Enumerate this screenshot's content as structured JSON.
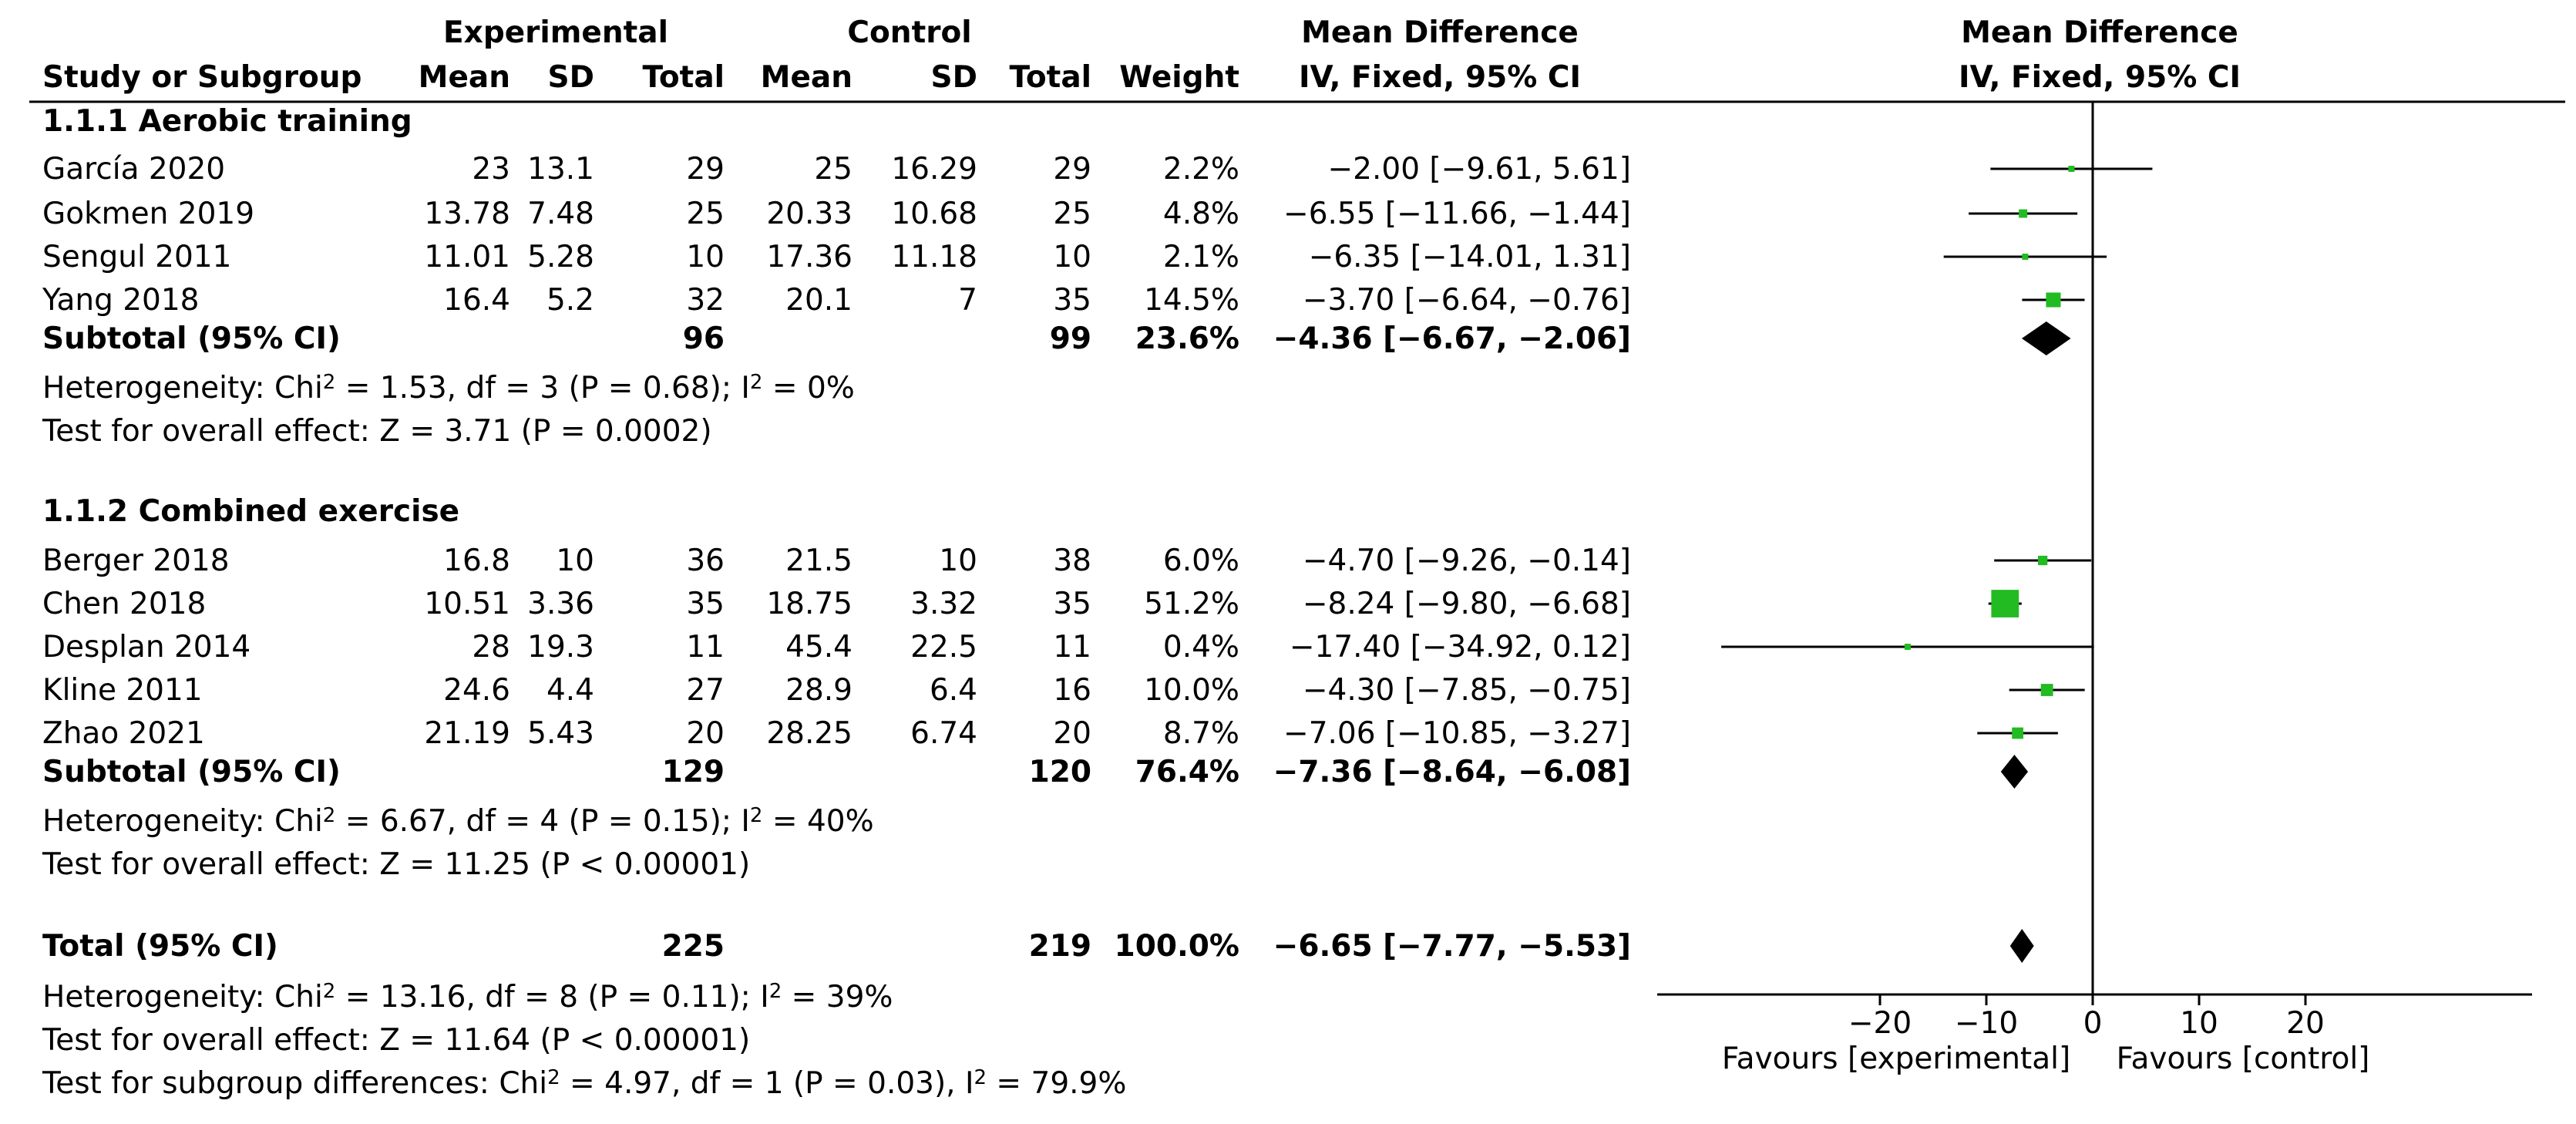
{
  "header": {
    "group1": "Experimental",
    "group2": "Control",
    "effect_label": "Mean Difference",
    "plot_label": "Mean Difference",
    "columns": {
      "study": "Study or Subgroup",
      "mean1": "Mean",
      "sd1": "SD",
      "total1": "Total",
      "mean2": "Mean",
      "sd2": "SD",
      "total2": "Total",
      "weight": "Weight",
      "ci": "IV, Fixed, 95% CI",
      "plot_ci": "IV, Fixed, 95% CI"
    }
  },
  "subgroups": [
    {
      "title": "1.1.1 Aerobic training",
      "studies": [
        {
          "name": "García 2020",
          "mean1": "23",
          "sd1": "13.1",
          "n1": "29",
          "mean2": "25",
          "sd2": "16.29",
          "n2": "29",
          "weight": "2.2%",
          "ci_text": "−2.00 [−9.61, 5.61]"
        },
        {
          "name": "Gokmen 2019",
          "mean1": "13.78",
          "sd1": "7.48",
          "n1": "25",
          "mean2": "20.33",
          "sd2": "10.68",
          "n2": "25",
          "weight": "4.8%",
          "ci_text": "−6.55 [−11.66, −1.44]"
        },
        {
          "name": "Sengul 2011",
          "mean1": "11.01",
          "sd1": "5.28",
          "n1": "10",
          "mean2": "17.36",
          "sd2": "11.18",
          "n2": "10",
          "weight": "2.1%",
          "ci_text": "−6.35 [−14.01, 1.31]"
        },
        {
          "name": "Yang 2018",
          "mean1": "16.4",
          "sd1": "5.2",
          "n1": "32",
          "mean2": "20.1",
          "sd2": "7",
          "n2": "35",
          "weight": "14.5%",
          "ci_text": "−3.70 [−6.64, −0.76]"
        }
      ],
      "subtotal": {
        "label": "Subtotal (95% CI)",
        "n1": "96",
        "n2": "99",
        "weight": "23.6%",
        "ci_text": "−4.36 [−6.67, −2.06]"
      },
      "heterogeneity": {
        "prefix": "Heterogeneity: Chi",
        "sup": "2",
        "mid": " = 1.53, df = 3 (P = 0.68); I",
        "sup2": "2",
        "suffix": " = 0%"
      },
      "overall": "Test for overall effect: Z = 3.71 (P = 0.0002)"
    },
    {
      "title": "1.1.2 Combined exercise",
      "studies": [
        {
          "name": "Berger 2018",
          "mean1": "16.8",
          "sd1": "10",
          "n1": "36",
          "mean2": "21.5",
          "sd2": "10",
          "n2": "38",
          "weight": "6.0%",
          "ci_text": "−4.70 [−9.26, −0.14]"
        },
        {
          "name": "Chen 2018",
          "mean1": "10.51",
          "sd1": "3.36",
          "n1": "35",
          "mean2": "18.75",
          "sd2": "3.32",
          "n2": "35",
          "weight": "51.2%",
          "ci_text": "−8.24 [−9.80, −6.68]"
        },
        {
          "name": "Desplan 2014",
          "mean1": "28",
          "sd1": "19.3",
          "n1": "11",
          "mean2": "45.4",
          "sd2": "22.5",
          "n2": "11",
          "weight": "0.4%",
          "ci_text": "−17.40 [−34.92, 0.12]"
        },
        {
          "name": "Kline 2011",
          "mean1": "24.6",
          "sd1": "4.4",
          "n1": "27",
          "mean2": "28.9",
          "sd2": "6.4",
          "n2": "16",
          "weight": "10.0%",
          "ci_text": "−4.30 [−7.85, −0.75]"
        },
        {
          "name": "Zhao 2021",
          "mean1": "21.19",
          "sd1": "5.43",
          "n1": "20",
          "mean2": "28.25",
          "sd2": "6.74",
          "n2": "20",
          "weight": "8.7%",
          "ci_text": "−7.06 [−10.85, −3.27]"
        }
      ],
      "subtotal": {
        "label": "Subtotal (95% CI)",
        "n1": "129",
        "n2": "120",
        "weight": "76.4%",
        "ci_text": "−7.36 [−8.64, −6.08]"
      },
      "heterogeneity": {
        "prefix": "Heterogeneity: Chi",
        "sup": "2",
        "mid": " = 6.67, df = 4 (P = 0.15); I",
        "sup2": "2",
        "suffix": " = 40%"
      },
      "overall": "Test for overall effect: Z = 11.25 (P < 0.00001)"
    }
  ],
  "total": {
    "label": "Total (95% CI)",
    "n1": "225",
    "n2": "219",
    "weight": "100.0%",
    "ci_text": "−6.65 [−7.77, −5.53]",
    "heterogeneity": {
      "prefix": "Heterogeneity: Chi",
      "sup": "2",
      "mid": " = 13.16, df = 8 (P = 0.11); I",
      "sup2": "2",
      "suffix": " = 39%"
    },
    "overall": "Test for overall effect: Z = 11.64 (P < 0.00001)",
    "subgroup_diff": {
      "prefix": "Test for subgroup differences: Chi",
      "sup": "2",
      "mid": " = 4.97, df = 1 (P = 0.03), I",
      "sup2": "2",
      "suffix": " = 79.9%"
    }
  },
  "axis": {
    "ticks": [
      -20,
      -10,
      0,
      10,
      20
    ],
    "tick_labels": [
      "−20",
      "−10",
      "0",
      "10",
      "20"
    ],
    "favours_left": "Favours [experimental]",
    "favours_right": "Favours [control]"
  },
  "colors": {
    "study_marker": "#22bb22",
    "diamond": "#000000",
    "lines": "#000000"
  },
  "chart_data": {
    "type": "forest",
    "measure": "Mean Difference",
    "method": "IV, Fixed, 95% CI",
    "xlim": [
      -20,
      20
    ],
    "null_value": 0,
    "studies": [
      {
        "name": "García 2020",
        "subgroup": "1.1.1 Aerobic training",
        "md": -2.0,
        "lower": -9.61,
        "upper": 5.61,
        "weight": 2.2
      },
      {
        "name": "Gokmen 2019",
        "subgroup": "1.1.1 Aerobic training",
        "md": -6.55,
        "lower": -11.66,
        "upper": -1.44,
        "weight": 4.8
      },
      {
        "name": "Sengul 2011",
        "subgroup": "1.1.1 Aerobic training",
        "md": -6.35,
        "lower": -14.01,
        "upper": 1.31,
        "weight": 2.1
      },
      {
        "name": "Yang 2018",
        "subgroup": "1.1.1 Aerobic training",
        "md": -3.7,
        "lower": -6.64,
        "upper": -0.76,
        "weight": 14.5
      },
      {
        "name": "Berger 2018",
        "subgroup": "1.1.2 Combined exercise",
        "md": -4.7,
        "lower": -9.26,
        "upper": -0.14,
        "weight": 6.0
      },
      {
        "name": "Chen 2018",
        "subgroup": "1.1.2 Combined exercise",
        "md": -8.24,
        "lower": -9.8,
        "upper": -6.68,
        "weight": 51.2
      },
      {
        "name": "Desplan 2014",
        "subgroup": "1.1.2 Combined exercise",
        "md": -17.4,
        "lower": -34.92,
        "upper": 0.12,
        "weight": 0.4
      },
      {
        "name": "Kline 2011",
        "subgroup": "1.1.2 Combined exercise",
        "md": -4.3,
        "lower": -7.85,
        "upper": -0.75,
        "weight": 10.0
      },
      {
        "name": "Zhao 2021",
        "subgroup": "1.1.2 Combined exercise",
        "md": -7.06,
        "lower": -10.85,
        "upper": -3.27,
        "weight": 8.7
      }
    ],
    "pooled": [
      {
        "name": "Subtotal (95% CI)",
        "subgroup": "1.1.1 Aerobic training",
        "md": -4.36,
        "lower": -6.67,
        "upper": -2.06,
        "weight": 23.6
      },
      {
        "name": "Subtotal (95% CI)",
        "subgroup": "1.1.2 Combined exercise",
        "md": -7.36,
        "lower": -8.64,
        "upper": -6.08,
        "weight": 76.4
      },
      {
        "name": "Total (95% CI)",
        "subgroup": "all",
        "md": -6.65,
        "lower": -7.77,
        "upper": -5.53,
        "weight": 100.0
      }
    ]
  }
}
